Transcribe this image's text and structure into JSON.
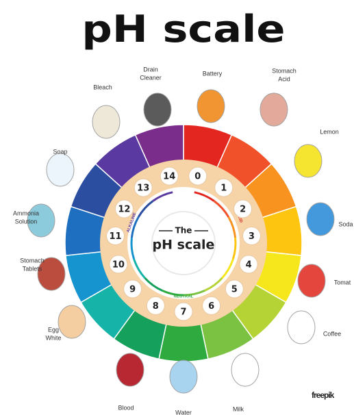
{
  "title": "pH scale",
  "center": {
    "line1": "The",
    "line2": "pH scale"
  },
  "scale_labels": {
    "acid": "ACID",
    "neutral": "NEUTRAL",
    "alkaline": "ALKALINE"
  },
  "levels": [
    {
      "ph": 0,
      "item": [
        "Battery"
      ]
    },
    {
      "ph": 1,
      "item": [
        "Stomach",
        "Acid"
      ]
    },
    {
      "ph": 2,
      "item": [
        "Lemon"
      ]
    },
    {
      "ph": 3,
      "item": [
        "Soda"
      ]
    },
    {
      "ph": 4,
      "item": [
        "Tomat"
      ]
    },
    {
      "ph": 5,
      "item": [
        "Coffee"
      ]
    },
    {
      "ph": 6,
      "item": [
        "Milk"
      ]
    },
    {
      "ph": 7,
      "item": [
        "Water"
      ]
    },
    {
      "ph": 8,
      "item": [
        "Blood"
      ]
    },
    {
      "ph": 9,
      "item": [
        "Egg",
        "White"
      ]
    },
    {
      "ph": 10,
      "item": [
        "Stomach",
        "Tablets"
      ]
    },
    {
      "ph": 11,
      "item": [
        "Ammonia",
        "Solution"
      ]
    },
    {
      "ph": 12,
      "item": [
        "Soap"
      ]
    },
    {
      "ph": 13,
      "item": [
        "Bleach"
      ]
    },
    {
      "ph": 14,
      "item": [
        "Drain",
        "Cleaner"
      ]
    }
  ],
  "watermark": "freepik"
}
